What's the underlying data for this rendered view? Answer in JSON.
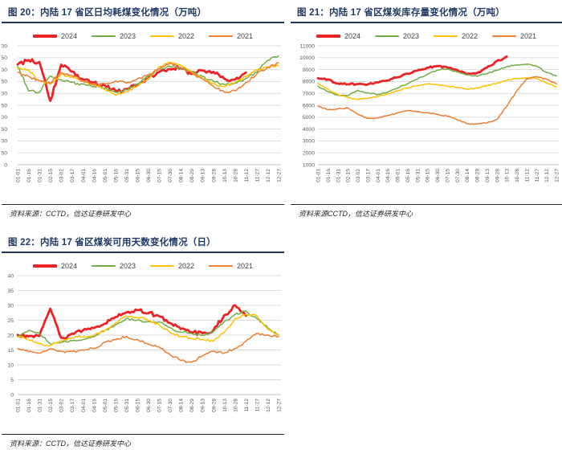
{
  "colors": {
    "title_navy": "#1f3864",
    "grid_line": "#d9d9d9",
    "axis_line": "#bfbfbf",
    "axis_text": "#595959",
    "source_text": "#262626",
    "series_2024": "#ed2224",
    "series_2023": "#70ad47",
    "series_2022": "#ffc000",
    "series_2021": "#ed7d31"
  },
  "chart_data": [
    {
      "id": "fig20",
      "type": "line",
      "title": "图 20：内陆 17 省区日均耗煤变化情况（万吨）",
      "source": "资料来源：CCTD，信达证券研发中心",
      "unit": "万吨",
      "ylim": [
        0,
        500
      ],
      "ytick_step": 50,
      "grid": true,
      "legend_position": "top",
      "categories": [
        "01-01",
        "01-16",
        "01-31",
        "02-15",
        "03-02",
        "03-17",
        "04-01",
        "04-16",
        "05-01",
        "05-16",
        "05-31",
        "06-15",
        "06-30",
        "07-15",
        "07-30",
        "08-14",
        "08-29",
        "09-13",
        "09-28",
        "10-13",
        "10-28",
        "11-12",
        "11-27",
        "12-12",
        "12-27"
      ],
      "series": [
        {
          "name": "2024",
          "color": "#ed2224",
          "values": [
            422,
            438,
            430,
            268,
            420,
            392,
            358,
            345,
            332,
            312,
            318,
            332,
            362,
            390,
            402,
            408,
            382,
            398,
            390,
            362,
            356,
            388,
            null,
            null,
            null
          ]
        },
        {
          "name": "2023",
          "color": "#70ad47",
          "values": [
            415,
            310,
            305,
            372,
            358,
            345,
            338,
            330,
            322,
            305,
            315,
            340,
            372,
            400,
            415,
            408,
            392,
            370,
            352,
            338,
            342,
            362,
            390,
            440,
            458
          ]
        },
        {
          "name": "2022",
          "color": "#ffc000",
          "values": [
            405,
            398,
            352,
            338,
            382,
            368,
            350,
            338,
            316,
            292,
            306,
            330,
            362,
            412,
            432,
            418,
            388,
            362,
            342,
            330,
            346,
            372,
            398,
            412,
            416
          ]
        },
        {
          "name": "2021",
          "color": "#ed7d31",
          "values": [
            388,
            372,
            352,
            342,
            388,
            375,
            352,
            335,
            342,
            352,
            345,
            360,
            378,
            402,
            425,
            408,
            385,
            362,
            330,
            305,
            312,
            345,
            382,
            408,
            428
          ]
        }
      ]
    },
    {
      "id": "fig21",
      "type": "line",
      "title": "图 21：内陆 17 省区煤炭库存量变化情况（万吨）",
      "source": "资料来源CCTD，信达证券研发中心",
      "unit": "万吨",
      "ylim": [
        1000,
        11000
      ],
      "ytick_step": 1000,
      "grid": true,
      "legend_position": "top",
      "categories": [
        "01-01",
        "01-16",
        "01-31",
        "02-15",
        "03-02",
        "03-17",
        "04-01",
        "04-16",
        "05-01",
        "05-16",
        "05-31",
        "06-15",
        "06-30",
        "07-15",
        "07-30",
        "08-14",
        "08-29",
        "09-13",
        "09-28",
        "10-13",
        "10-28",
        "11-12",
        "11-27",
        "12-12",
        "12-27"
      ],
      "series": [
        {
          "name": "2024",
          "color": "#ed2224",
          "values": [
            8300,
            8150,
            7820,
            7760,
            7800,
            7750,
            7900,
            8100,
            8350,
            8650,
            8900,
            9150,
            9300,
            9200,
            8950,
            8600,
            8700,
            9150,
            9700,
            10100,
            null,
            null,
            null,
            null,
            null
          ]
        },
        {
          "name": "2023",
          "color": "#70ad47",
          "values": [
            7600,
            7150,
            6850,
            6800,
            7250,
            7050,
            6900,
            7100,
            7450,
            7800,
            8200,
            8600,
            8950,
            9050,
            8800,
            8550,
            8450,
            8650,
            8950,
            9250,
            9400,
            9450,
            9300,
            8750,
            8460
          ]
        },
        {
          "name": "2022",
          "color": "#ffc000",
          "values": [
            7850,
            7350,
            6900,
            6650,
            6480,
            6600,
            6750,
            6950,
            7200,
            7450,
            7650,
            7800,
            7750,
            7600,
            7500,
            7350,
            7450,
            7650,
            7850,
            8100,
            8250,
            8300,
            8250,
            7900,
            7560
          ]
        },
        {
          "name": "2021",
          "color": "#ed7d31",
          "values": [
            5950,
            5620,
            5700,
            5780,
            5250,
            4880,
            4950,
            5150,
            5350,
            5550,
            5450,
            5380,
            5250,
            5100,
            4800,
            4450,
            4420,
            4520,
            4800,
            5900,
            7200,
            8200,
            8400,
            8200,
            7800
          ]
        }
      ]
    },
    {
      "id": "fig22",
      "type": "line",
      "title": "图 22：内陆 17 省区煤炭可用天数变化情况（日）",
      "source": "资料来源：CCTD，信达证券研发中心",
      "unit": "日",
      "ylim": [
        0,
        40
      ],
      "ytick_step": 5,
      "grid": true,
      "legend_position": "top",
      "categories": [
        "01-01",
        "01-16",
        "01-31",
        "02-15",
        "03-02",
        "03-17",
        "04-01",
        "04-16",
        "05-01",
        "05-16",
        "05-31",
        "06-15",
        "06-30",
        "07-15",
        "07-30",
        "08-14",
        "08-29",
        "09-13",
        "09-28",
        "10-13",
        "10-28",
        "11-12",
        "11-27",
        "12-12",
        "12-27"
      ],
      "series": [
        {
          "name": "2024",
          "color": "#ed2224",
          "values": [
            20,
            19.5,
            19.8,
            29,
            19,
            20.5,
            21.5,
            22.5,
            24,
            26,
            27.5,
            28.5,
            27.5,
            26.5,
            24,
            22,
            21,
            20.5,
            21.5,
            26.5,
            30,
            26.5,
            null,
            null,
            null
          ]
        },
        {
          "name": "2023",
          "color": "#70ad47",
          "values": [
            19.5,
            21.5,
            20.5,
            17,
            17.5,
            18,
            18.5,
            19.5,
            21.5,
            23.5,
            25.5,
            25,
            24.5,
            24.5,
            22.5,
            21,
            20.5,
            20,
            21,
            24.5,
            27,
            28,
            25.5,
            22.5,
            20
          ]
        },
        {
          "name": "2022",
          "color": "#ffc000",
          "values": [
            19.5,
            18.5,
            17,
            16.5,
            18,
            19,
            19.5,
            20,
            21.5,
            24,
            26.5,
            26,
            25,
            23.5,
            21,
            19.5,
            19,
            18.5,
            18,
            21,
            25.5,
            27,
            26.5,
            22,
            20
          ]
        },
        {
          "name": "2021",
          "color": "#ed7d31",
          "values": [
            15.5,
            14.5,
            14,
            15.5,
            14.5,
            14.5,
            15,
            15.5,
            17.5,
            18.5,
            19.5,
            18.5,
            17,
            16,
            13.5,
            11.5,
            11,
            13,
            14.5,
            14,
            15.5,
            18,
            20.5,
            20,
            19.5
          ]
        }
      ]
    }
  ]
}
